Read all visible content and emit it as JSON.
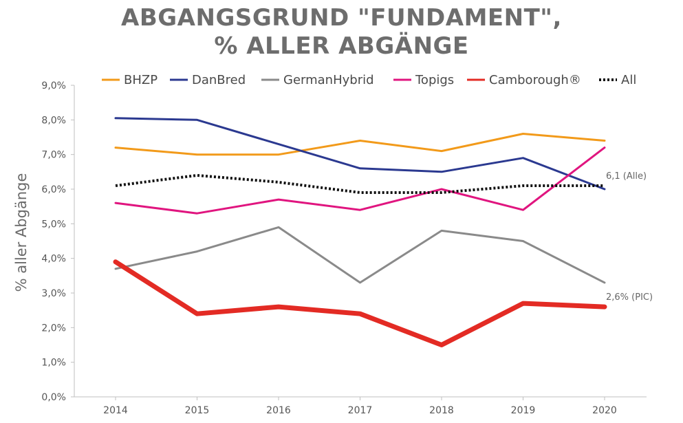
{
  "chart_data": {
    "type": "line",
    "title_line1": "ABGANGSGRUND \"FUNDAMENT\",",
    "title_line2": "% ALLER ABGÄNGE",
    "xlabel": "",
    "ylabel": "% aller Abgänge",
    "x": [
      "2014",
      "2015",
      "2016",
      "2017",
      "2018",
      "2019",
      "2020"
    ],
    "ylim": [
      0,
      9
    ],
    "yticks": [
      0,
      1,
      2,
      3,
      4,
      5,
      6,
      7,
      8,
      9
    ],
    "ytick_labels": [
      "0,0%",
      "1,0%",
      "2,0%",
      "3,0%",
      "4,0%",
      "5,0%",
      "6,0%",
      "7,0%",
      "8,0%",
      "9,0%"
    ],
    "grid": false,
    "legend_position": "top",
    "series": [
      {
        "name": "BHZP",
        "color": "#f29a1a",
        "width": 3,
        "dash": "",
        "values": [
          7.2,
          7.0,
          7.0,
          7.4,
          7.1,
          7.6,
          7.4
        ]
      },
      {
        "name": "DanBred",
        "color": "#2b3990",
        "width": 3,
        "dash": "",
        "values": [
          8.05,
          8.0,
          7.3,
          6.6,
          6.5,
          6.9,
          6.0
        ]
      },
      {
        "name": "GermanHybrid",
        "color": "#8a8a8a",
        "width": 3,
        "dash": "",
        "values": [
          3.7,
          4.2,
          4.9,
          3.3,
          4.8,
          4.5,
          3.3
        ]
      },
      {
        "name": "Topigs",
        "color": "#e0157f",
        "width": 3,
        "dash": "",
        "values": [
          5.6,
          5.3,
          5.7,
          5.4,
          6.0,
          5.4,
          7.2
        ]
      },
      {
        "name": "Camborough®",
        "color": "#e32b24",
        "width": 7,
        "dash": "",
        "values": [
          3.9,
          2.4,
          2.6,
          2.4,
          1.5,
          2.7,
          2.6
        ]
      },
      {
        "name": "All",
        "color": "#111111",
        "width": 4,
        "dash": "3,3",
        "values": [
          6.1,
          6.4,
          6.2,
          5.9,
          5.9,
          6.1,
          6.1
        ]
      }
    ],
    "annotations": [
      {
        "text": "6,1 (Alle)",
        "x": "2020",
        "y": 6.1
      },
      {
        "text": "2,6% (PIC)",
        "x": "2020",
        "y": 2.6
      }
    ]
  }
}
